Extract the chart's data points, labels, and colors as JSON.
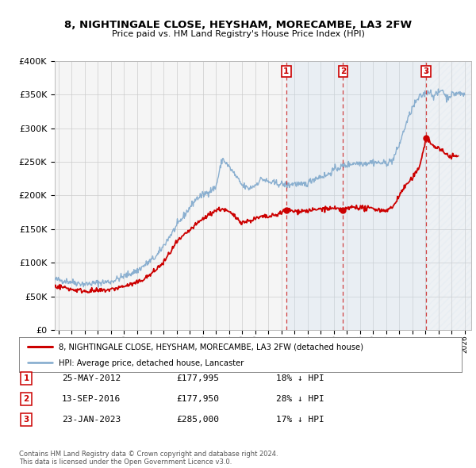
{
  "title": "8, NIGHTINGALE CLOSE, HEYSHAM, MORECAMBE, LA3 2FW",
  "subtitle": "Price paid vs. HM Land Registry's House Price Index (HPI)",
  "ylim": [
    0,
    400000
  ],
  "xlim_start": 1994.7,
  "xlim_end": 2026.5,
  "ytick_labels": [
    "£0",
    "£50K",
    "£100K",
    "£150K",
    "£200K",
    "£250K",
    "£300K",
    "£350K",
    "£400K"
  ],
  "ytick_values": [
    0,
    50000,
    100000,
    150000,
    200000,
    250000,
    300000,
    350000,
    400000
  ],
  "sale_dates": [
    2012.38,
    2016.71,
    2023.06
  ],
  "sale_prices": [
    177995,
    177950,
    285000
  ],
  "sale_labels": [
    "1",
    "2",
    "3"
  ],
  "vline_color": "#cc0000",
  "legend_label1": "8, NIGHTINGALE CLOSE, HEYSHAM, MORECAMBE, LA3 2FW (detached house)",
  "legend_label2": "HPI: Average price, detached house, Lancaster",
  "table_rows": [
    [
      "1",
      "25-MAY-2012",
      "£177,995",
      "18% ↓ HPI"
    ],
    [
      "2",
      "13-SEP-2016",
      "£177,950",
      "28% ↓ HPI"
    ],
    [
      "3",
      "23-JAN-2023",
      "£285,000",
      "17% ↓ HPI"
    ]
  ],
  "footer": "Contains HM Land Registry data © Crown copyright and database right 2024.\nThis data is licensed under the Open Government Licence v3.0.",
  "bg_color": "#f5f5f5",
  "grid_color": "#cccccc",
  "shade_color": "#ddeeff",
  "hatch_color": "#ccddee"
}
